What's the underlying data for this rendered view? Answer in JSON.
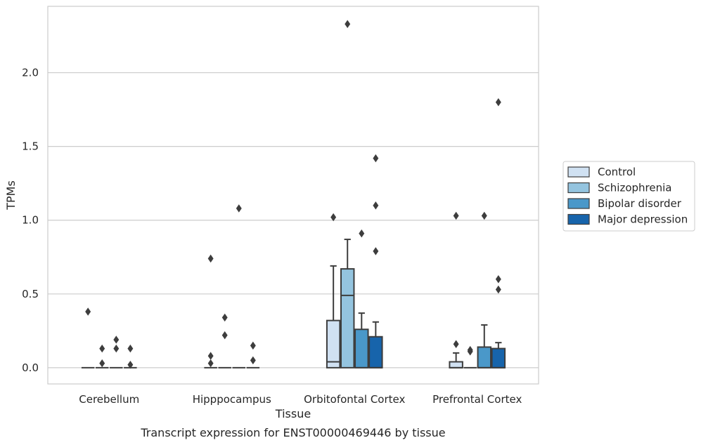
{
  "chart_data": {
    "type": "box",
    "title": "Transcript expression for ENST00000469446 by tissue",
    "xlabel": "Tissue",
    "ylabel": "TPMs",
    "ylim": [
      -0.11,
      2.45
    ],
    "yticks": [
      "0.0",
      "0.5",
      "1.0",
      "1.5",
      "2.0"
    ],
    "grid": "horizontal",
    "legend_position": "right",
    "categories": [
      "Cerebellum",
      "Hipppocampus",
      "Orbitofontal Cortex",
      "Prefrontal Cortex"
    ],
    "series": [
      {
        "name": "Control",
        "color": "#d0e1f2",
        "boxes": [
          {
            "q1": 0,
            "median": 0,
            "q3": 0,
            "whisker_low": 0,
            "whisker_high": 0,
            "outliers": [
              0.38
            ]
          },
          {
            "q1": 0,
            "median": 0,
            "q3": 0,
            "whisker_low": 0,
            "whisker_high": 0,
            "outliers": [
              0.74,
              0.08,
              0.03
            ]
          },
          {
            "q1": 0,
            "median": 0.04,
            "q3": 0.32,
            "whisker_low": 0,
            "whisker_high": 0.69,
            "outliers": [
              1.02
            ]
          },
          {
            "q1": 0,
            "median": 0,
            "q3": 0.04,
            "whisker_low": 0,
            "whisker_high": 0.1,
            "outliers": [
              1.03,
              0.16
            ]
          }
        ]
      },
      {
        "name": "Schizophrenia",
        "color": "#94c4df",
        "boxes": [
          {
            "q1": 0,
            "median": 0,
            "q3": 0,
            "whisker_low": 0,
            "whisker_high": 0,
            "outliers": [
              0.13,
              0.03
            ]
          },
          {
            "q1": 0,
            "median": 0,
            "q3": 0,
            "whisker_low": 0,
            "whisker_high": 0,
            "outliers": [
              0.34,
              0.22
            ]
          },
          {
            "q1": 0,
            "median": 0.49,
            "q3": 0.67,
            "whisker_low": 0,
            "whisker_high": 0.87,
            "outliers": [
              2.33
            ]
          },
          {
            "q1": 0,
            "median": 0,
            "q3": 0,
            "whisker_low": 0,
            "whisker_high": 0,
            "outliers": [
              0.12,
              0.11
            ]
          }
        ]
      },
      {
        "name": "Bipolar disorder",
        "color": "#4a98c9",
        "boxes": [
          {
            "q1": 0,
            "median": 0,
            "q3": 0,
            "whisker_low": 0,
            "whisker_high": 0,
            "outliers": [
              0.19,
              0.13
            ]
          },
          {
            "q1": 0,
            "median": 0,
            "q3": 0,
            "whisker_low": 0,
            "whisker_high": 0,
            "outliers": [
              1.08
            ]
          },
          {
            "q1": 0,
            "median": 0,
            "q3": 0.26,
            "whisker_low": 0,
            "whisker_high": 0.37,
            "outliers": [
              0.91
            ]
          },
          {
            "q1": 0,
            "median": 0,
            "q3": 0.14,
            "whisker_low": 0,
            "whisker_high": 0.29,
            "outliers": [
              1.03
            ]
          }
        ]
      },
      {
        "name": "Major depression",
        "color": "#1764ab",
        "boxes": [
          {
            "q1": 0,
            "median": 0,
            "q3": 0,
            "whisker_low": 0,
            "whisker_high": 0,
            "outliers": [
              0.13,
              0.02
            ]
          },
          {
            "q1": 0,
            "median": 0,
            "q3": 0,
            "whisker_low": 0,
            "whisker_high": 0,
            "outliers": [
              0.15,
              0.05
            ]
          },
          {
            "q1": 0,
            "median": 0,
            "q3": 0.21,
            "whisker_low": 0,
            "whisker_high": 0.31,
            "outliers": [
              1.42,
              1.1,
              0.79
            ]
          },
          {
            "q1": 0,
            "median": 0,
            "q3": 0.13,
            "whisker_low": 0,
            "whisker_high": 0.17,
            "outliers": [
              1.8,
              0.6,
              0.53
            ]
          }
        ]
      }
    ]
  }
}
